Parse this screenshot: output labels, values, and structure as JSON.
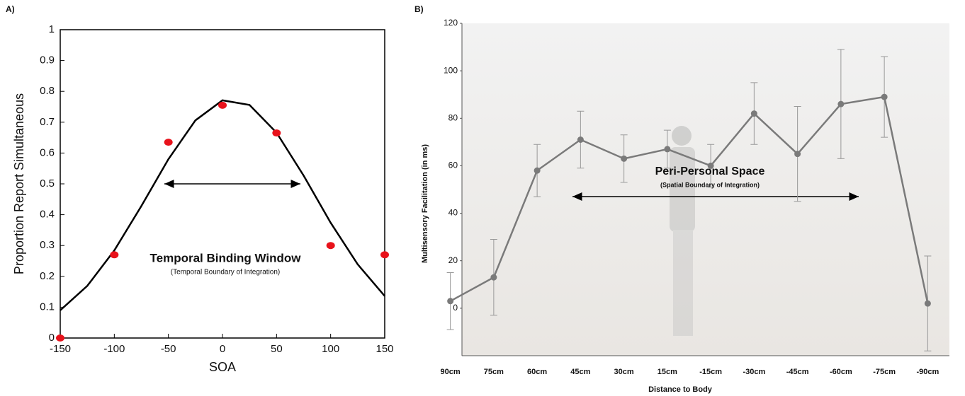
{
  "chart_data": [
    {
      "type": "scatter",
      "title": "A)",
      "x_label": "SOA",
      "y_label": "Proportion Report Simultaneous",
      "x": [
        -150,
        -100,
        -50,
        0,
        50,
        100,
        150
      ],
      "values": [
        0,
        0.27,
        0.635,
        0.755,
        0.665,
        0.3,
        0.27
      ],
      "color": "#e8121b",
      "fit": {
        "x": [
          -150,
          -125,
          -100,
          -75,
          -50,
          -25,
          0,
          25,
          50,
          75,
          100,
          125,
          150
        ],
        "values": [
          0.09,
          0.169,
          0.284,
          0.428,
          0.58,
          0.706,
          0.771,
          0.756,
          0.666,
          0.527,
          0.374,
          0.239,
          0.136
        ],
        "color": "#000000"
      },
      "xlim": [
        -150,
        150
      ],
      "xticks": [
        -150,
        -100,
        -50,
        0,
        50,
        100,
        150
      ],
      "ylim": [
        0,
        1
      ],
      "yticks": [
        0,
        0.1,
        0.2,
        0.3,
        0.4,
        0.5,
        0.6,
        0.7,
        0.8,
        0.9,
        1
      ],
      "annotation": "Temporal Binding Window",
      "annotation_sub": "(Temporal Boundary of Integration)"
    },
    {
      "type": "line",
      "title": "B)",
      "x_label": "Distance to Body",
      "y_label": "Multisensory Facilitation (in ms)",
      "categories": [
        "90cm",
        "75cm",
        "60cm",
        "45cm",
        "30cm",
        "15cm",
        "-15cm",
        "-30cm",
        "-45cm",
        "-60cm",
        "-75cm",
        "-90cm"
      ],
      "values": [
        3,
        13,
        58,
        71,
        63,
        67,
        60,
        82,
        65,
        86,
        89,
        2
      ],
      "errors": [
        12,
        16,
        11,
        12,
        10,
        8,
        9,
        13,
        20,
        23,
        17,
        20
      ],
      "color": "#7a7a7a",
      "ylim": [
        -20,
        120
      ],
      "yticks": [
        0,
        20,
        40,
        60,
        80,
        100,
        120
      ],
      "annotation": "Peri-Personal Space",
      "annotation_sub": "(Spatial Boundary of Integration)"
    }
  ]
}
